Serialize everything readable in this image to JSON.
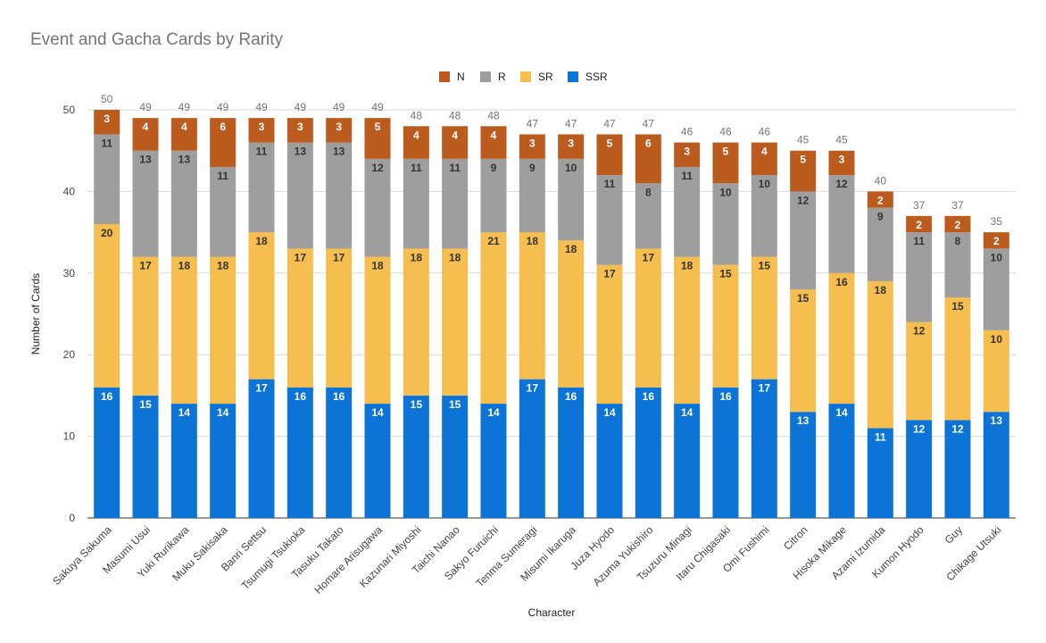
{
  "chart_data": {
    "type": "bar",
    "stacked": true,
    "title": "Event and Gacha Cards by Rarity",
    "xlabel": "Character",
    "ylabel": "Number of Cards",
    "ylim": [
      0,
      50
    ],
    "yticks": [
      0,
      10,
      20,
      30,
      40,
      50
    ],
    "grid": true,
    "legend_position": "top",
    "categories": [
      "Sakuya Sakuma",
      "Masumi Usui",
      "Yuki Rurikawa",
      "Muku Sakisaka",
      "Banri Settsu",
      "Tsumugi Tsukioka",
      "Tasuku Takato",
      "Homare Arisugawa",
      "Kazunari Miyoshi",
      "Taichi Nanao",
      "Sakyo Furuichi",
      "Tenma Sumeragi",
      "Misumi Ikaruga",
      "Juza Hyodo",
      "Azuma Yukishiro",
      "Tsuzuru Minagi",
      "Itaru Chigasaki",
      "Omi Fushimi",
      "Citron",
      "Hisoka Mikage",
      "Azami Izumida",
      "Kumon Hyodo",
      "Guy",
      "Chikage Utsuki"
    ],
    "totals": [
      50,
      49,
      49,
      49,
      49,
      49,
      49,
      49,
      48,
      48,
      48,
      47,
      47,
      47,
      47,
      46,
      46,
      46,
      45,
      45,
      40,
      37,
      37,
      35
    ],
    "series": [
      {
        "name": "SSR",
        "color": "#0b74d6",
        "values": [
          16,
          15,
          14,
          14,
          17,
          16,
          16,
          14,
          15,
          15,
          14,
          17,
          16,
          14,
          16,
          14,
          16,
          17,
          13,
          14,
          11,
          12,
          12,
          13
        ]
      },
      {
        "name": "SR",
        "color": "#f6bd4f",
        "values": [
          20,
          17,
          18,
          18,
          18,
          17,
          17,
          18,
          18,
          18,
          21,
          18,
          18,
          17,
          17,
          18,
          15,
          15,
          15,
          16,
          18,
          12,
          15,
          10
        ]
      },
      {
        "name": "R",
        "color": "#9e9e9e",
        "values": [
          11,
          13,
          13,
          11,
          11,
          13,
          13,
          12,
          11,
          11,
          9,
          9,
          10,
          11,
          8,
          11,
          10,
          10,
          12,
          12,
          9,
          11,
          8,
          10
        ]
      },
      {
        "name": "N",
        "color": "#bb5c1e",
        "values": [
          3,
          4,
          4,
          6,
          3,
          3,
          3,
          5,
          4,
          4,
          4,
          3,
          3,
          5,
          6,
          3,
          5,
          4,
          5,
          3,
          2,
          2,
          2,
          2
        ]
      }
    ],
    "legend_order": [
      "N",
      "R",
      "SR",
      "SSR"
    ]
  }
}
